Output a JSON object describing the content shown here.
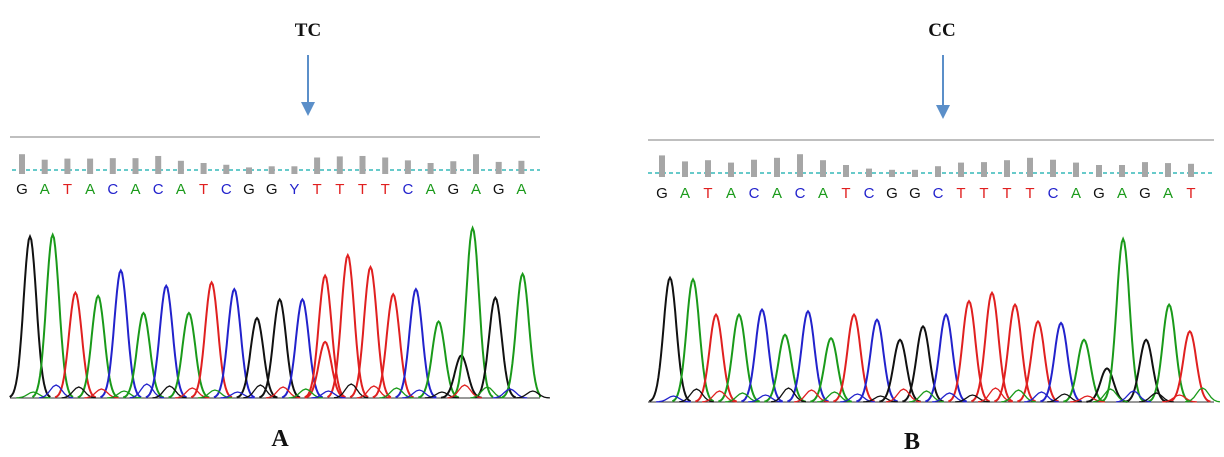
{
  "colors": {
    "A": "#1a9a1a",
    "C": "#2222cc",
    "G": "#111111",
    "T": "#e02020",
    "arrow": "#5b8fc9",
    "quality_bar": "#a6a6a6",
    "baseline_dash": "#35b8b8",
    "separator": "#aaaaaa"
  },
  "panels": [
    {
      "genotype_label": "TC",
      "panel_label": "A",
      "bases": [
        "G",
        "A",
        "T",
        "A",
        "C",
        "A",
        "C",
        "A",
        "T",
        "C",
        "G",
        "G",
        "Y",
        "T",
        "T",
        "T",
        "T",
        "C",
        "A",
        "G",
        "A",
        "G",
        "A"
      ],
      "base_colors": [
        "G",
        "A",
        "T",
        "A",
        "C",
        "A",
        "C",
        "A",
        "T",
        "C",
        "G",
        "G",
        "C",
        "T",
        "T",
        "T",
        "T",
        "C",
        "A",
        "G",
        "A",
        "G",
        "A"
      ],
      "quality": [
        0.9,
        0.65,
        0.7,
        0.7,
        0.72,
        0.72,
        0.82,
        0.6,
        0.5,
        0.42,
        0.3,
        0.35,
        0.35,
        0.75,
        0.8,
        0.82,
        0.75,
        0.62,
        0.5,
        0.58,
        0.9,
        0.55,
        0.6
      ],
      "peaks": [
        {
          "base": "G",
          "pos": 0.8,
          "height": 0.95
        },
        {
          "base": "A",
          "pos": 1.8,
          "height": 0.96
        },
        {
          "base": "T",
          "pos": 2.8,
          "height": 0.62
        },
        {
          "base": "A",
          "pos": 3.8,
          "height": 0.6
        },
        {
          "base": "C",
          "pos": 4.8,
          "height": 0.75
        },
        {
          "base": "A",
          "pos": 5.8,
          "height": 0.5
        },
        {
          "base": "C",
          "pos": 6.8,
          "height": 0.66
        },
        {
          "base": "A",
          "pos": 7.8,
          "height": 0.5
        },
        {
          "base": "T",
          "pos": 8.8,
          "height": 0.68
        },
        {
          "base": "C",
          "pos": 9.8,
          "height": 0.64
        },
        {
          "base": "G",
          "pos": 10.8,
          "height": 0.47
        },
        {
          "base": "G",
          "pos": 11.8,
          "height": 0.58
        },
        {
          "base": "C",
          "pos": 12.8,
          "height": 0.58
        },
        {
          "base": "T",
          "pos": 13.8,
          "height": 0.33
        },
        {
          "base": "T",
          "pos": 13.8,
          "height": 0.72
        },
        {
          "base": "T",
          "pos": 14.8,
          "height": 0.84
        },
        {
          "base": "T",
          "pos": 15.8,
          "height": 0.77
        },
        {
          "base": "T",
          "pos": 16.8,
          "height": 0.61
        },
        {
          "base": "C",
          "pos": 17.8,
          "height": 0.64
        },
        {
          "base": "A",
          "pos": 18.8,
          "height": 0.45
        },
        {
          "base": "G",
          "pos": 19.8,
          "height": 0.25
        },
        {
          "base": "A",
          "pos": 20.3,
          "height": 1.0
        },
        {
          "base": "G",
          "pos": 21.3,
          "height": 0.59
        },
        {
          "base": "A",
          "pos": 22.5,
          "height": 0.73
        }
      ]
    },
    {
      "genotype_label": "CC",
      "panel_label": "B",
      "bases": [
        "G",
        "A",
        "T",
        "A",
        "C",
        "A",
        "C",
        "A",
        "T",
        "C",
        "G",
        "G",
        "C",
        "T",
        "T",
        "T",
        "T",
        "C",
        "A",
        "G",
        "A",
        "G",
        "A",
        "T"
      ],
      "base_colors": [
        "G",
        "A",
        "T",
        "A",
        "C",
        "A",
        "C",
        "A",
        "T",
        "C",
        "G",
        "G",
        "C",
        "T",
        "T",
        "T",
        "T",
        "C",
        "A",
        "G",
        "A",
        "G",
        "A",
        "T"
      ],
      "quality": [
        0.9,
        0.65,
        0.7,
        0.6,
        0.72,
        0.8,
        0.95,
        0.7,
        0.5,
        0.35,
        0.3,
        0.3,
        0.45,
        0.6,
        0.62,
        0.7,
        0.8,
        0.72,
        0.6,
        0.5,
        0.5,
        0.62,
        0.58,
        0.55
      ],
      "peaks": [
        {
          "base": "G",
          "pos": 0.8,
          "height": 0.74
        },
        {
          "base": "A",
          "pos": 1.8,
          "height": 0.73
        },
        {
          "base": "T",
          "pos": 2.8,
          "height": 0.52
        },
        {
          "base": "A",
          "pos": 3.8,
          "height": 0.52
        },
        {
          "base": "C",
          "pos": 4.8,
          "height": 0.55
        },
        {
          "base": "A",
          "pos": 5.8,
          "height": 0.4
        },
        {
          "base": "C",
          "pos": 6.8,
          "height": 0.54
        },
        {
          "base": "A",
          "pos": 7.8,
          "height": 0.38
        },
        {
          "base": "T",
          "pos": 8.8,
          "height": 0.52
        },
        {
          "base": "C",
          "pos": 9.8,
          "height": 0.49
        },
        {
          "base": "G",
          "pos": 10.8,
          "height": 0.37
        },
        {
          "base": "G",
          "pos": 11.8,
          "height": 0.45
        },
        {
          "base": "C",
          "pos": 12.8,
          "height": 0.52
        },
        {
          "base": "T",
          "pos": 13.8,
          "height": 0.6
        },
        {
          "base": "T",
          "pos": 14.8,
          "height": 0.65
        },
        {
          "base": "T",
          "pos": 15.8,
          "height": 0.58
        },
        {
          "base": "T",
          "pos": 16.8,
          "height": 0.48
        },
        {
          "base": "C",
          "pos": 17.8,
          "height": 0.47
        },
        {
          "base": "A",
          "pos": 18.8,
          "height": 0.37
        },
        {
          "base": "G",
          "pos": 19.8,
          "height": 0.2
        },
        {
          "base": "A",
          "pos": 20.5,
          "height": 0.97
        },
        {
          "base": "G",
          "pos": 21.5,
          "height": 0.37
        },
        {
          "base": "A",
          "pos": 22.5,
          "height": 0.58
        },
        {
          "base": "T",
          "pos": 23.4,
          "height": 0.42
        }
      ]
    }
  ]
}
